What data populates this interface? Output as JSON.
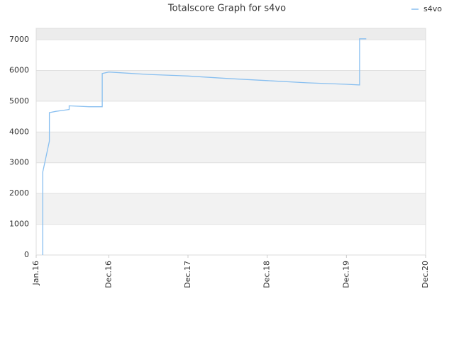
{
  "chart_data": {
    "type": "line",
    "title": "Totalscore Graph for s4vo",
    "x": [
      "2016-02",
      "2016-02",
      "2016-03",
      "2016-03",
      "2016-04",
      "2016-05",
      "2016-06",
      "2016-06",
      "2016-09",
      "2016-11",
      "2016-11",
      "2016-12",
      "2017-06",
      "2017-12",
      "2018-06",
      "2018-12",
      "2019-06",
      "2019-12",
      "2020-02",
      "2020-02",
      "2020-03"
    ],
    "series": [
      {
        "name": "s4vo",
        "color": "#88bff0",
        "values": [
          0,
          2700,
          3700,
          4630,
          4670,
          4700,
          4730,
          4850,
          4820,
          4820,
          5900,
          5950,
          5870,
          5820,
          5740,
          5670,
          5600,
          5550,
          5530,
          7030,
          7030
        ]
      }
    ],
    "xlim": [
      "2016-01",
      "2020-12"
    ],
    "xticks": [
      {
        "value": "2016-01",
        "label": "Jan.16"
      },
      {
        "value": "2016-12",
        "label": "Dec.16"
      },
      {
        "value": "2017-12",
        "label": "Dec.17"
      },
      {
        "value": "2018-12",
        "label": "Dec.18"
      },
      {
        "value": "2019-12",
        "label": "Dec.19"
      },
      {
        "value": "2020-12",
        "label": "Dec.20"
      }
    ],
    "ylim": [
      0,
      7370
    ],
    "yticks": [
      0,
      1000,
      2000,
      3000,
      4000,
      5000,
      6000,
      7000
    ],
    "grid": true,
    "legend": "top-right"
  }
}
